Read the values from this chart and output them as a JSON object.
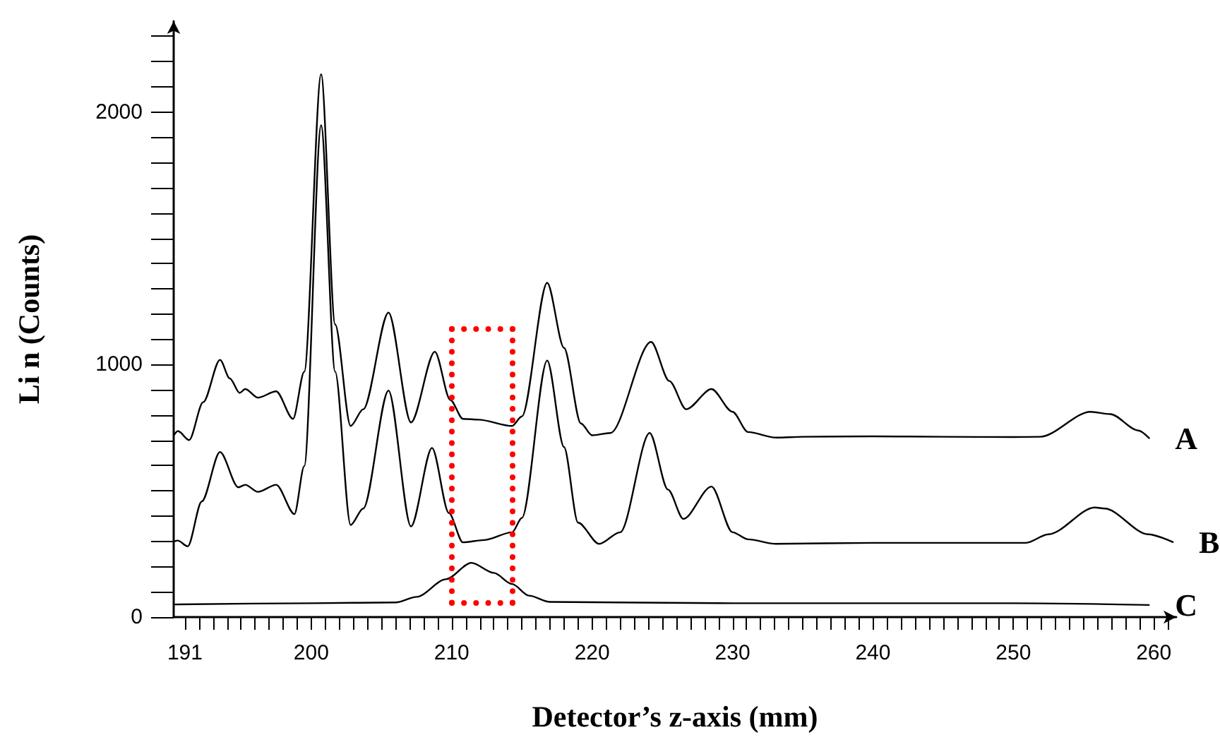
{
  "chart_data": {
    "type": "line",
    "xlabel": "Detector’s z-axis (mm)",
    "ylabel": "Li n (Counts)",
    "xlim": [
      190.2,
      261.6
    ],
    "ylim": [
      0,
      2360
    ],
    "xticks": [
      191,
      {
        "value": 192,
        "label": null
      },
      {
        "value": 193,
        "label": null
      },
      {
        "value": 194,
        "label": null
      },
      {
        "value": 195,
        "label": null
      },
      {
        "value": 196,
        "label": null
      },
      {
        "value": 197,
        "label": null
      },
      {
        "value": 198,
        "label": null
      },
      {
        "value": 199,
        "label": null
      },
      200,
      {
        "value": 201,
        "label": null
      },
      {
        "value": 202,
        "label": null
      },
      {
        "value": 203,
        "label": null
      },
      {
        "value": 204,
        "label": null
      },
      {
        "value": 205,
        "label": null
      },
      {
        "value": 206,
        "label": null
      },
      {
        "value": 207,
        "label": null
      },
      {
        "value": 208,
        "label": null
      },
      {
        "value": 209,
        "label": null
      },
      210,
      {
        "value": 211,
        "label": null
      },
      {
        "value": 212,
        "label": null
      },
      {
        "value": 213,
        "label": null
      },
      {
        "value": 214,
        "label": null
      },
      {
        "value": 215,
        "label": null
      },
      {
        "value": 216,
        "label": null
      },
      {
        "value": 217,
        "label": null
      },
      {
        "value": 218,
        "label": null
      },
      {
        "value": 219,
        "label": null
      },
      220,
      {
        "value": 221,
        "label": null
      },
      {
        "value": 222,
        "label": null
      },
      {
        "value": 223,
        "label": null
      },
      {
        "value": 224,
        "label": null
      },
      {
        "value": 225,
        "label": null
      },
      {
        "value": 226,
        "label": null
      },
      {
        "value": 227,
        "label": null
      },
      {
        "value": 228,
        "label": null
      },
      {
        "value": 229,
        "label": null
      },
      230,
      {
        "value": 231,
        "label": null
      },
      {
        "value": 232,
        "label": null
      },
      {
        "value": 233,
        "label": null
      },
      {
        "value": 234,
        "label": null
      },
      {
        "value": 235,
        "label": null
      },
      {
        "value": 236,
        "label": null
      },
      {
        "value": 237,
        "label": null
      },
      {
        "value": 238,
        "label": null
      },
      {
        "value": 239,
        "label": null
      },
      240,
      {
        "value": 241,
        "label": null
      },
      {
        "value": 242,
        "label": null
      },
      {
        "value": 243,
        "label": null
      },
      {
        "value": 244,
        "label": null
      },
      {
        "value": 245,
        "label": null
      },
      {
        "value": 246,
        "label": null
      },
      {
        "value": 247,
        "label": null
      },
      {
        "value": 248,
        "label": null
      },
      {
        "value": 249,
        "label": null
      },
      250,
      {
        "value": 251,
        "label": null
      },
      {
        "value": 252,
        "label": null
      },
      {
        "value": 253,
        "label": null
      },
      {
        "value": 254,
        "label": null
      },
      {
        "value": 255,
        "label": null
      },
      {
        "value": 256,
        "label": null
      },
      {
        "value": 257,
        "label": null
      },
      {
        "value": 258,
        "label": null
      },
      {
        "value": 259,
        "label": null
      },
      260,
      {
        "value": 261,
        "label": null
      }
    ],
    "yticks": [
      0,
      {
        "value": 100,
        "label": null
      },
      {
        "value": 200,
        "label": null
      },
      {
        "value": 300,
        "label": null
      },
      {
        "value": 400,
        "label": null
      },
      {
        "value": 500,
        "label": null
      },
      {
        "value": 600,
        "label": null
      },
      {
        "value": 700,
        "label": null
      },
      {
        "value": 800,
        "label": null
      },
      {
        "value": 900,
        "label": null
      },
      1000,
      {
        "value": 1100,
        "label": null
      },
      {
        "value": 1200,
        "label": null
      },
      {
        "value": 1300,
        "label": null
      },
      {
        "value": 1400,
        "label": null
      },
      {
        "value": 1500,
        "label": null
      },
      {
        "value": 1600,
        "label": null
      },
      {
        "value": 1700,
        "label": null
      },
      {
        "value": 1800,
        "label": null
      },
      {
        "value": 1900,
        "label": null
      },
      2000,
      {
        "value": 2100,
        "label": null
      },
      {
        "value": 2200,
        "label": null
      },
      {
        "value": 2300,
        "label": null
      }
    ],
    "marker": "none",
    "line_style": "solid",
    "series": [
      {
        "name": "A",
        "color": "#000000",
        "x": [
          190.2,
          190.5,
          191.3,
          192.3,
          193.5,
          194.2,
          194.9,
          195.3,
          196.2,
          197.5,
          198.7,
          199.5,
          200.7,
          201.7,
          202.8,
          203.7,
          205.5,
          207.1,
          208.8,
          209.9,
          210.8,
          211.9,
          214.3,
          215.0,
          216.8,
          218.0,
          219.2,
          220.0,
          221.3,
          224.2,
          225.5,
          226.7,
          228.5,
          230.0,
          231.1,
          233.1,
          235,
          240,
          245,
          250,
          251.9,
          255.5,
          256.9,
          258.9,
          259.7
        ],
        "values": [
          720,
          737,
          701,
          851,
          1019,
          945,
          888,
          903,
          869,
          894,
          785,
          972,
          2150,
          1159,
          757,
          823,
          1206,
          771,
          1051,
          860,
          785,
          782,
          757,
          795,
          1324,
          1066,
          767,
          720,
          729,
          1090,
          935,
          823,
          903,
          813,
          733,
          711,
          714,
          716,
          714,
          713,
          714,
          813,
          804,
          739,
          707
        ]
      },
      {
        "name": "B",
        "color": "#000000",
        "x": [
          190.2,
          190.5,
          191.2,
          192.2,
          193.5,
          194.8,
          195.3,
          196.2,
          197.5,
          198.8,
          199.5,
          200.7,
          201.7,
          202.8,
          203.7,
          205.5,
          207.1,
          208.6,
          209.8,
          210.8,
          212.3,
          214.3,
          215.0,
          216.8,
          218.0,
          219.0,
          220.5,
          222.0,
          224.1,
          225.4,
          226.5,
          228.5,
          230.0,
          231.1,
          233.1,
          240,
          245,
          250.9,
          252.5,
          255.8,
          256.5,
          259.6,
          261.4
        ],
        "values": [
          299,
          303,
          280,
          458,
          654,
          514,
          524,
          496,
          524,
          408,
          598,
          1948,
          972,
          365,
          430,
          897,
          359,
          670,
          412,
          296,
          305,
          336,
          393,
          1016,
          673,
          374,
          290,
          336,
          729,
          505,
          389,
          517,
          336,
          308,
          290,
          294,
          294,
          294,
          328,
          434,
          430,
          328,
          296
        ]
      },
      {
        "name": "C",
        "color": "#000000",
        "x": [
          190.2,
          200,
          206.0,
          207.5,
          209.6,
          211.4,
          213.0,
          214.3,
          215.5,
          217.0,
          230,
          250,
          259.7
        ],
        "values": [
          50,
          55,
          58,
          80,
          150,
          215,
          175,
          131,
          85,
          60,
          55,
          55,
          48
        ]
      }
    ]
  }
}
